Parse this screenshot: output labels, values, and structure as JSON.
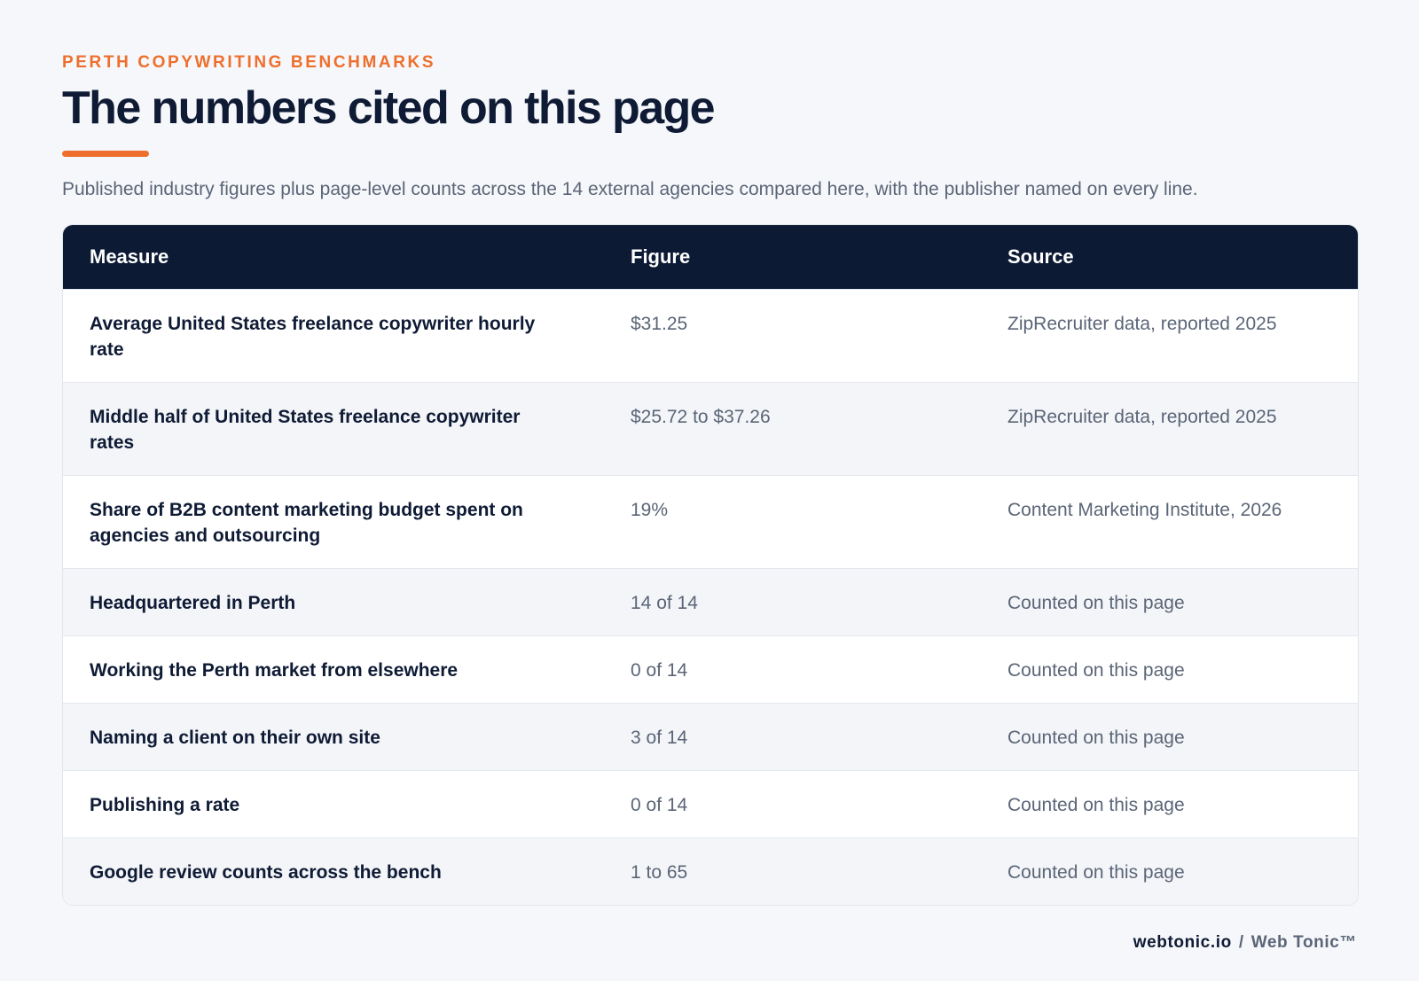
{
  "header": {
    "eyebrow": "PERTH COPYWRITING BENCHMARKS",
    "title": "The numbers cited on this page",
    "subtitle": "Published industry figures plus page-level counts across the 14 external agencies compared here, with the publisher named on every line."
  },
  "table": {
    "columns": [
      "Measure",
      "Figure",
      "Source"
    ],
    "rows": [
      {
        "measure": "Average United States freelance copywriter hourly rate",
        "figure": "$31.25",
        "source": "ZipRecruiter data, reported 2025"
      },
      {
        "measure": "Middle half of United States freelance copywriter rates",
        "figure": "$25.72 to $37.26",
        "source": "ZipRecruiter data, reported 2025"
      },
      {
        "measure": "Share of B2B content marketing budget spent on agencies and outsourcing",
        "figure": "19%",
        "source": "Content Marketing Institute, 2026"
      },
      {
        "measure": "Headquartered in Perth",
        "figure": "14 of 14",
        "source": "Counted on this page"
      },
      {
        "measure": "Working the Perth market from elsewhere",
        "figure": "0 of 14",
        "source": "Counted on this page"
      },
      {
        "measure": "Naming a client on their own site",
        "figure": "3 of 14",
        "source": "Counted on this page"
      },
      {
        "measure": "Publishing a rate",
        "figure": "0 of 14",
        "source": "Counted on this page"
      },
      {
        "measure": "Google review counts across the bench",
        "figure": "1 to 65",
        "source": "Counted on this page"
      }
    ]
  },
  "footer": {
    "domain": "webtonic.io",
    "separator": "/",
    "brand": "Web Tonic™"
  },
  "colors": {
    "accent": "#ee6f2d",
    "header_bg": "#0c1a34",
    "text_dark": "#0f1b35",
    "text_muted": "#5b6577"
  }
}
